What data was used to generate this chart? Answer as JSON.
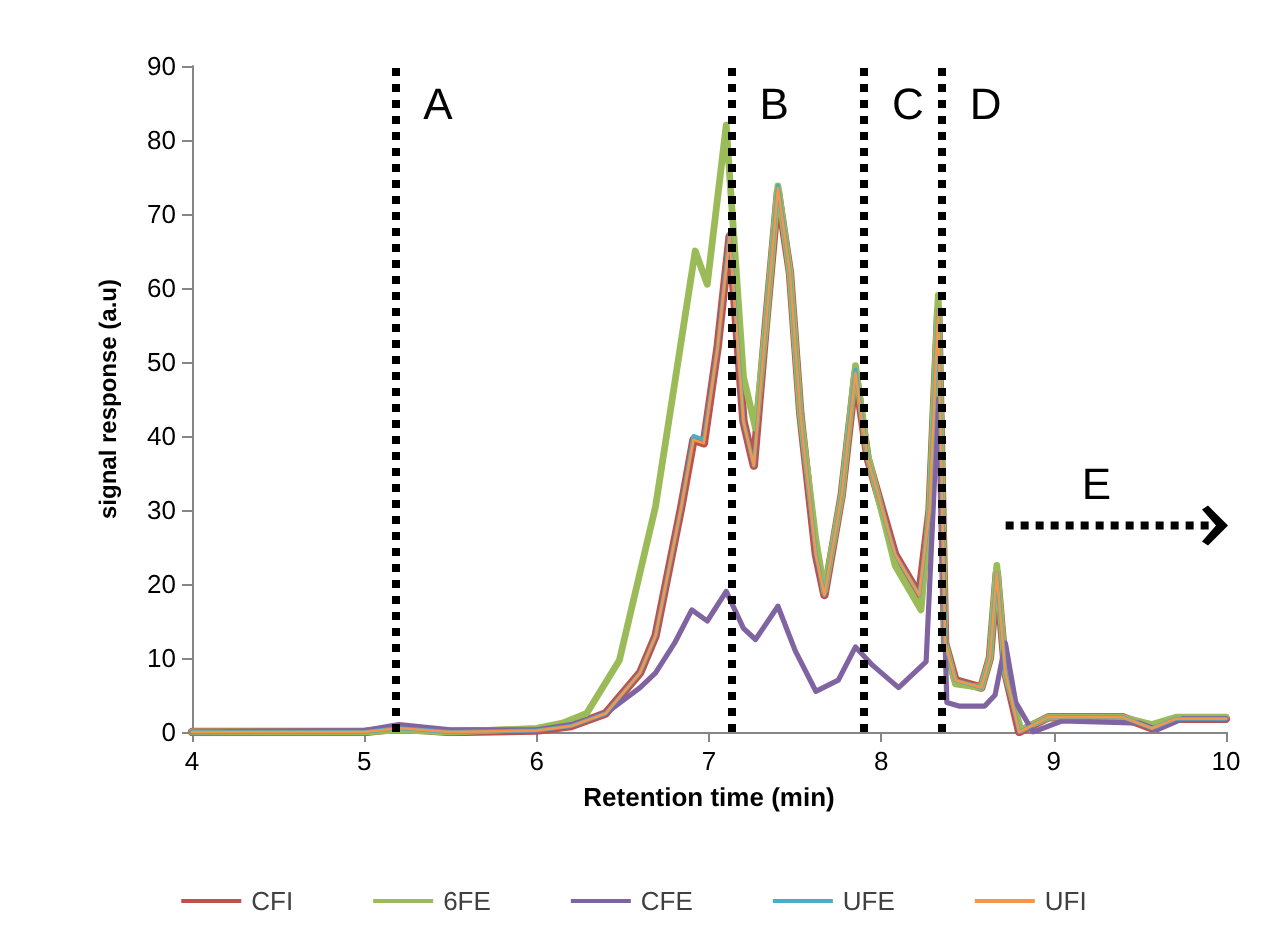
{
  "chart_data": {
    "type": "line",
    "xlabel": "Retention time (min)",
    "ylabel": "signal response (a.u)",
    "xlim": [
      4,
      10
    ],
    "xticks": [
      4,
      5,
      6,
      7,
      8,
      9,
      10
    ],
    "ylim": [
      0,
      90
    ],
    "yticks": [
      0,
      10,
      20,
      30,
      40,
      50,
      60,
      70,
      80,
      90
    ],
    "grid": false,
    "legend": "bottom",
    "marker": "none",
    "line_style": "solid",
    "series": [
      {
        "name": "CFI",
        "color": "#c0504d",
        "x": [
          4,
          5,
          5.2,
          5.5,
          6,
          6.2,
          6.4,
          6.6,
          6.69,
          6.84,
          6.91,
          6.97,
          7.05,
          7.12,
          7.2,
          7.26,
          7.33,
          7.4,
          7.47,
          7.53,
          7.62,
          7.67,
          7.77,
          7.85,
          7.92,
          8.08,
          8.22,
          8.28,
          8.33,
          8.37,
          8.43,
          8.58,
          8.63,
          8.67,
          8.72,
          8.8,
          8.97,
          9.4,
          9.57,
          9.71,
          10
        ],
        "values": [
          0,
          0,
          0.5,
          0,
          0.2,
          0.8,
          2.5,
          8,
          13,
          30.5,
          39.5,
          39,
          52,
          67,
          42,
          36,
          55,
          73,
          62,
          43,
          24,
          18.5,
          32,
          48.5,
          37,
          24,
          18.5,
          30,
          57,
          12,
          7,
          6,
          10,
          21.5,
          8,
          0,
          2,
          2,
          0.5,
          1.8,
          1.8
        ]
      },
      {
        "name": "6FE",
        "color": "#9bbb59",
        "x": [
          4,
          5,
          5.2,
          5.5,
          6,
          6.15,
          6.29,
          6.48,
          6.69,
          6.84,
          6.92,
          6.99,
          7.1,
          7.2,
          7.27,
          7.33,
          7.4,
          7.47,
          7.53,
          7.62,
          7.67,
          7.77,
          7.85,
          7.92,
          8.08,
          8.23,
          8.28,
          8.33,
          8.37,
          8.43,
          8.58,
          8.63,
          8.67,
          8.72,
          8.81,
          8.97,
          9.4,
          9.57,
          9.71,
          10
        ],
        "values": [
          0,
          0,
          0.3,
          0,
          0.5,
          1.2,
          2.5,
          9.7,
          30.5,
          53,
          65,
          60.5,
          82,
          48,
          41,
          55,
          73.8,
          62,
          43,
          26,
          19,
          32,
          49.5,
          37.5,
          22.5,
          16.5,
          30,
          59,
          12,
          6.5,
          6,
          10,
          22.5,
          8,
          0.3,
          2,
          2,
          1,
          2,
          2
        ]
      },
      {
        "name": "CFE",
        "color": "#8064a2",
        "x": [
          4,
          5,
          5.2,
          5.5,
          6,
          6.2,
          6.4,
          6.6,
          6.69,
          6.8,
          6.9,
          6.99,
          7.1,
          7.2,
          7.27,
          7.4,
          7.5,
          7.62,
          7.75,
          7.85,
          7.95,
          8.1,
          8.26,
          8.33,
          8.38,
          8.45,
          8.6,
          8.66,
          8.72,
          8.78,
          8.88,
          9.05,
          9.5,
          9.6,
          9.75,
          10
        ],
        "values": [
          0,
          0.2,
          1,
          0.3,
          0.3,
          1,
          2.5,
          6,
          8,
          12,
          16.5,
          15,
          19,
          14,
          12.5,
          17,
          11,
          5.5,
          7,
          11.5,
          9,
          6,
          9.5,
          45,
          4,
          3.5,
          3.5,
          5,
          12,
          4,
          0,
          1.5,
          1.2,
          0.3,
          1.8,
          1.8
        ]
      },
      {
        "name": "UFE",
        "color": "#4bacc6",
        "x": [
          4,
          5,
          5.2,
          5.5,
          6,
          6.2,
          6.4,
          6.6,
          6.69,
          6.84,
          6.91,
          6.97,
          7.05,
          7.12,
          7.2,
          7.26,
          7.33,
          7.4,
          7.47,
          7.53,
          7.62,
          7.67,
          7.77,
          7.85,
          7.92,
          8.08,
          8.22,
          8.28,
          8.33,
          8.37,
          8.43,
          8.58,
          8.63,
          8.67,
          8.72,
          8.8,
          8.97,
          9.4,
          9.57,
          9.71,
          10
        ],
        "values": [
          0,
          0,
          0.5,
          0,
          0.2,
          0.8,
          2.5,
          8,
          13,
          30.5,
          40,
          39.5,
          52,
          67.5,
          42,
          36,
          55,
          73.8,
          62,
          43,
          24,
          18.5,
          32,
          49,
          37,
          24,
          18.5,
          30,
          57,
          12,
          7,
          6,
          10,
          21.5,
          8,
          0,
          2,
          2,
          0.5,
          1.8,
          1.8
        ]
      },
      {
        "name": "UFI",
        "color": "#f79646",
        "x": [
          4,
          5,
          5.2,
          5.5,
          6,
          6.2,
          6.4,
          6.6,
          6.69,
          6.84,
          6.91,
          6.97,
          7.05,
          7.12,
          7.2,
          7.26,
          7.33,
          7.4,
          7.47,
          7.53,
          7.62,
          7.67,
          7.77,
          7.85,
          7.92,
          8.08,
          8.22,
          8.28,
          8.33,
          8.37,
          8.43,
          8.58,
          8.63,
          8.67,
          8.72,
          8.8,
          8.97,
          9.4,
          9.57,
          9.71,
          10
        ],
        "values": [
          0,
          0,
          0.5,
          0,
          0.2,
          0.8,
          2.5,
          8,
          13,
          30.5,
          39.5,
          39,
          52,
          67,
          42,
          36,
          55,
          73.5,
          62,
          43,
          24,
          18.5,
          32,
          48.5,
          37,
          24,
          18.5,
          30,
          57,
          12,
          7,
          6,
          10,
          21.5,
          8,
          0,
          2,
          2,
          0.5,
          1.8,
          1.8
        ]
      }
    ],
    "ref_lines": [
      {
        "axis": "x",
        "value": 5.18,
        "label": "A",
        "color": "#000000",
        "line_style": "dotted"
      },
      {
        "axis": "x",
        "value": 7.13,
        "label": "B",
        "color": "#000000",
        "line_style": "dotted"
      },
      {
        "axis": "x",
        "value": 7.9,
        "label": "C",
        "color": "#000000",
        "line_style": "dotted"
      },
      {
        "axis": "x",
        "value": 8.35,
        "label": "D",
        "color": "#000000",
        "line_style": "dotted"
      }
    ],
    "annotations": [
      "E"
    ]
  }
}
